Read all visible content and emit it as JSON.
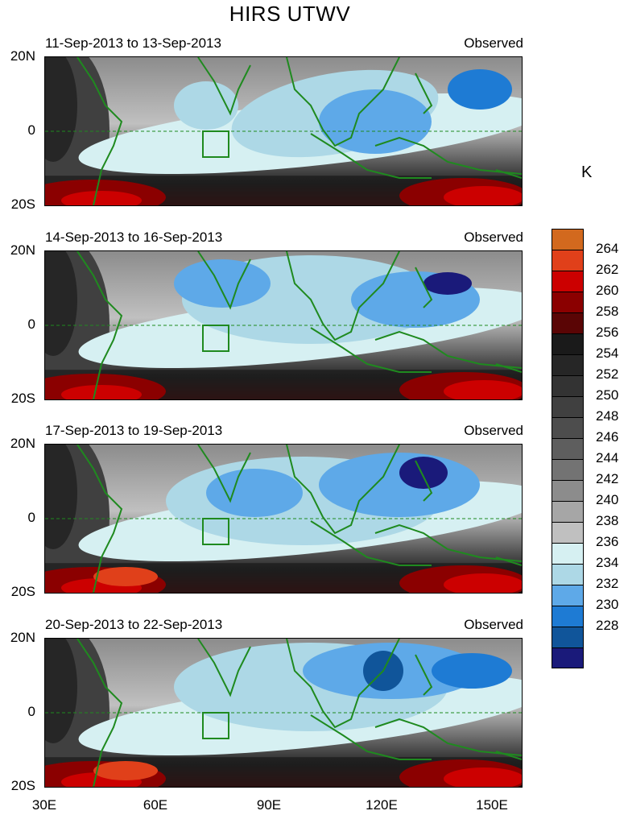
{
  "title": "HIRS UTWV",
  "unit": "K",
  "x_ticks": [
    "30E",
    "60E",
    "90E",
    "120E",
    "150E"
  ],
  "y_ticks": [
    "20N",
    "0",
    "20S"
  ],
  "panels": [
    {
      "date_range": "11-Sep-2013 to 13-Sep-2013",
      "label": "Observed"
    },
    {
      "date_range": "14-Sep-2013 to 16-Sep-2013",
      "label": "Observed"
    },
    {
      "date_range": "17-Sep-2013 to 19-Sep-2013",
      "label": "Observed"
    },
    {
      "date_range": "20-Sep-2013 to 22-Sep-2013",
      "label": "Observed"
    }
  ],
  "colorbar": {
    "labels": [
      "264",
      "262",
      "260",
      "258",
      "256",
      "254",
      "252",
      "250",
      "248",
      "246",
      "244",
      "242",
      "240",
      "238",
      "236",
      "234",
      "232",
      "230",
      "228"
    ],
    "colors": [
      "#d2691e",
      "#e0401a",
      "#cc0000",
      "#8b0000",
      "#5a0505",
      "#1a1a1a",
      "#262626",
      "#333333",
      "#404040",
      "#4d4d4d",
      "#5e5e5e",
      "#737373",
      "#8c8c8c",
      "#a6a6a6",
      "#c0c0c0",
      "#d6f0f2",
      "#add8e6",
      "#5ea9e8",
      "#1e7bd4",
      "#10559a",
      "#1a1a7a"
    ]
  },
  "chart_data": {
    "type": "heatmap",
    "title": "HIRS UTWV",
    "colorbar_label": "K",
    "xlim": [
      "30E",
      "160E"
    ],
    "ylim": [
      "20S",
      "20N"
    ],
    "levels": [
      228,
      230,
      232,
      234,
      236,
      238,
      240,
      242,
      244,
      246,
      248,
      250,
      252,
      254,
      256,
      258,
      260,
      262,
      264
    ]
  }
}
